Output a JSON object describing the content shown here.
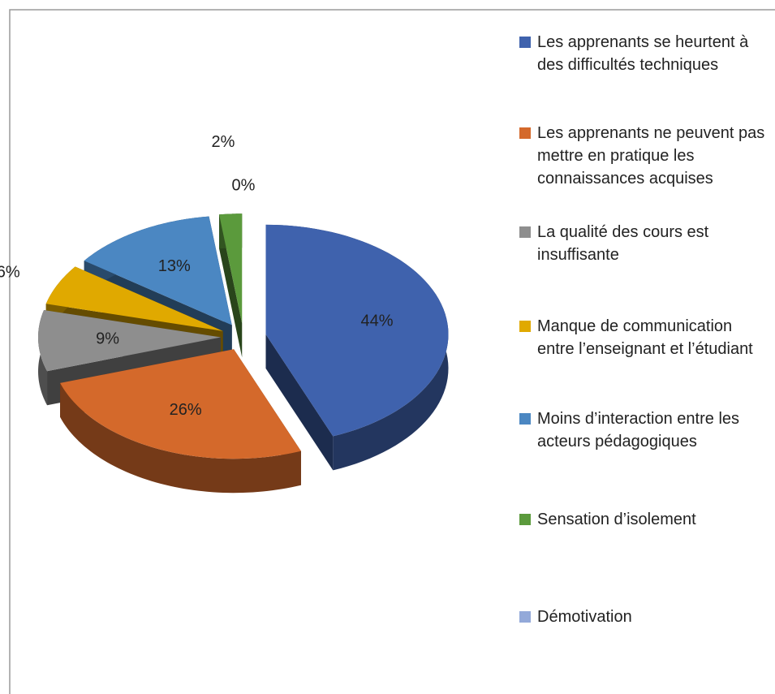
{
  "chart_data": {
    "type": "pie",
    "categories": [
      "Les apprenants se heurtent à des difficultés techniques",
      "Les apprenants ne peuvent pas mettre en pratique les connaissances acquises",
      "La qualité des cours est insuffisante",
      "Manque de communication entre l’enseignant et l’étudiant",
      "Moins d’interaction entre les acteurs pédagogiques",
      "Sensation d’isolement",
      "Démotivation"
    ],
    "values": [
      44,
      26,
      9,
      6,
      13,
      2,
      0
    ],
    "value_labels": [
      "44%",
      "26%",
      "9%",
      "6%",
      "13%",
      "2%",
      "0%"
    ],
    "colors": [
      "#3f62ad",
      "#d4692b",
      "#8e8e8e",
      "#e0a900",
      "#4b87c2",
      "#5b9a3c",
      "#93a9d9"
    ]
  }
}
